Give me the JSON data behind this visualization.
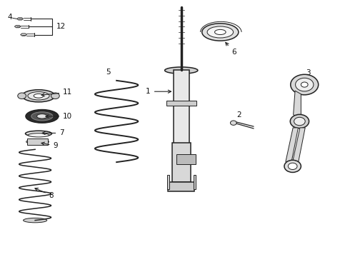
{
  "background_color": "#ffffff",
  "line_color": "#222222",
  "label_color": "#111111",
  "fig_width": 4.9,
  "fig_height": 3.6,
  "dpi": 100
}
